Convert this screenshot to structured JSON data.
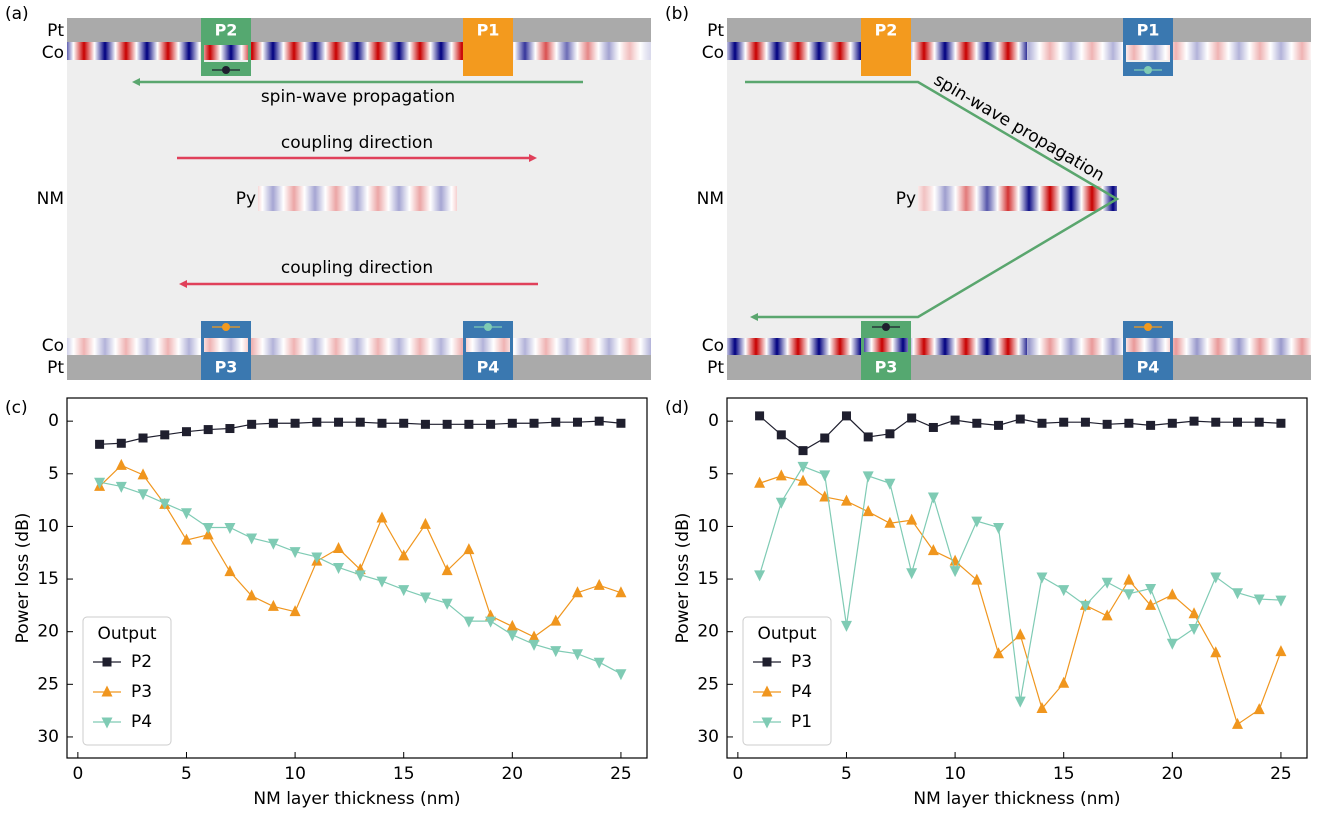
{
  "panels": [
    {
      "label": "(a)",
      "pt_top": "Pt",
      "co_top": "Co",
      "nm": "NM",
      "py": "Py",
      "co_bottom": "Co",
      "pt_bottom": "Pt",
      "ports": {
        "top_left": "P2",
        "top_right": "P1",
        "bottom_left": "P3",
        "bottom_right": "P4"
      },
      "propagation": "spin-wave propagation",
      "coupling_top": "coupling direction",
      "coupling_bottom": "coupling direction"
    },
    {
      "label": "(b)",
      "pt_top": "Pt",
      "co_top": "Co",
      "nm": "NM",
      "py": "Py",
      "co_bottom": "Co",
      "pt_bottom": "Pt",
      "ports": {
        "top_left": "P2",
        "top_right": "P1",
        "bottom_left": "P3",
        "bottom_right": "P4"
      },
      "propagation": "spin-wave propagation"
    }
  ],
  "chart_data": [
    {
      "type": "line",
      "label": "(c)",
      "xlabel": "NM layer thickness (nm)",
      "ylabel": "Power loss (dB)",
      "x": [
        1,
        2,
        3,
        4,
        5,
        6,
        7,
        8,
        9,
        10,
        11,
        12,
        13,
        14,
        15,
        16,
        17,
        18,
        19,
        20,
        21,
        22,
        23,
        24,
        25
      ],
      "xlim": [
        -0.5,
        26.2
      ],
      "xticks": [
        0,
        5,
        10,
        15,
        20,
        25
      ],
      "ylim": [
        32,
        -2.2
      ],
      "yticks": [
        0,
        5,
        10,
        15,
        20,
        25,
        30
      ],
      "legend": {
        "title": "Output",
        "loc": "lower left"
      },
      "series": [
        {
          "name": "P2",
          "color": "#1f1f2e",
          "marker": "square",
          "values": [
            2.2,
            2.1,
            1.6,
            1.3,
            1.0,
            0.8,
            0.7,
            0.3,
            0.2,
            0.2,
            0.1,
            0.1,
            0.1,
            0.2,
            0.2,
            0.3,
            0.3,
            0.3,
            0.3,
            0.2,
            0.2,
            0.1,
            0.1,
            0.0,
            0.2
          ]
        },
        {
          "name": "P3",
          "color": "#f0961e",
          "marker": "triangle-up",
          "values": [
            6.2,
            4.2,
            5.1,
            7.9,
            11.3,
            10.8,
            14.3,
            16.6,
            17.6,
            18.1,
            13.3,
            12.1,
            14.1,
            9.2,
            12.8,
            9.8,
            14.2,
            12.2,
            18.5,
            19.5,
            20.5,
            19.0,
            16.3,
            15.6,
            16.3
          ]
        },
        {
          "name": "P4",
          "color": "#7fcbb4",
          "marker": "triangle-down",
          "values": [
            5.8,
            6.2,
            6.9,
            7.8,
            8.7,
            10.1,
            10.1,
            11.1,
            11.6,
            12.4,
            12.9,
            13.9,
            14.6,
            15.2,
            16.0,
            16.7,
            17.3,
            19.0,
            19.0,
            20.3,
            21.2,
            21.8,
            22.1,
            22.9,
            24.0
          ]
        }
      ]
    },
    {
      "type": "line",
      "label": "(d)",
      "xlabel": "NM layer thickness (nm)",
      "ylabel": "Power loss (dB)",
      "x": [
        1,
        2,
        3,
        4,
        5,
        6,
        7,
        8,
        9,
        10,
        11,
        12,
        13,
        14,
        15,
        16,
        17,
        18,
        19,
        20,
        21,
        22,
        23,
        24,
        25
      ],
      "xlim": [
        -0.5,
        26.2
      ],
      "xticks": [
        0,
        5,
        10,
        15,
        20,
        25
      ],
      "ylim": [
        32,
        -2.2
      ],
      "yticks": [
        0,
        5,
        10,
        15,
        20,
        25,
        30
      ],
      "legend": {
        "title": "Output",
        "loc": "lower left"
      },
      "series": [
        {
          "name": "P3",
          "color": "#1f1f2e",
          "marker": "square",
          "values": [
            -0.5,
            1.3,
            2.8,
            1.6,
            -0.5,
            1.5,
            1.2,
            -0.3,
            0.6,
            -0.1,
            0.2,
            0.4,
            -0.2,
            0.2,
            0.1,
            0.1,
            0.3,
            0.2,
            0.4,
            0.2,
            0.0,
            0.1,
            0.1,
            0.1,
            0.2
          ]
        },
        {
          "name": "P4",
          "color": "#f0961e",
          "marker": "triangle-up",
          "values": [
            5.9,
            5.2,
            5.7,
            7.2,
            7.6,
            8.6,
            9.7,
            9.4,
            12.3,
            13.3,
            15.1,
            22.1,
            20.3,
            27.3,
            24.9,
            17.5,
            18.5,
            15.1,
            17.5,
            16.5,
            18.3,
            22.0,
            28.8,
            27.4,
            21.9
          ]
        },
        {
          "name": "P1",
          "color": "#7fcbb4",
          "marker": "triangle-down",
          "values": [
            14.6,
            7.7,
            4.3,
            5.1,
            19.4,
            5.2,
            5.9,
            14.4,
            7.2,
            14.2,
            9.5,
            10.1,
            26.6,
            14.8,
            16.0,
            17.5,
            15.3,
            16.4,
            15.9,
            21.1,
            19.7,
            14.8,
            16.3,
            16.9,
            17.0
          ]
        }
      ]
    }
  ]
}
